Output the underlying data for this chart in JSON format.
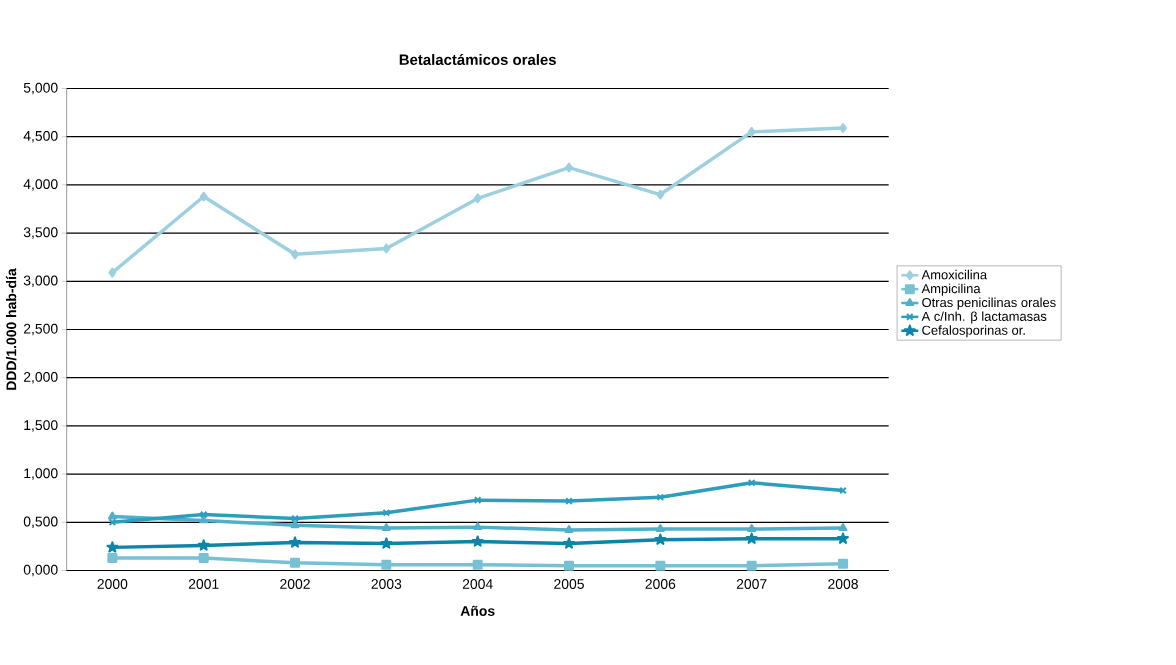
{
  "chart_data": {
    "type": "line",
    "title": "Betalactámicos orales",
    "xlabel": "Años",
    "ylabel": "DDD/1.000 hab-día",
    "categories": [
      "2000",
      "2001",
      "2002",
      "2003",
      "2004",
      "2005",
      "2006",
      "2007",
      "2008"
    ],
    "series": [
      {
        "name": "Amoxicilina",
        "color": "#9dd0df",
        "marker": "diamond",
        "values": [
          3.09,
          3.88,
          3.28,
          3.34,
          3.86,
          4.18,
          3.9,
          4.55,
          4.59
        ]
      },
      {
        "name": "Ampicilina",
        "color": "#78c0d4",
        "marker": "square",
        "values": [
          0.13,
          0.13,
          0.08,
          0.06,
          0.06,
          0.05,
          0.05,
          0.05,
          0.07
        ]
      },
      {
        "name": "Otras penicilinas orales",
        "color": "#4fb0c9",
        "marker": "triangle",
        "values": [
          0.56,
          0.52,
          0.47,
          0.44,
          0.45,
          0.42,
          0.43,
          0.43,
          0.44
        ]
      },
      {
        "name": "A c/Inh. β lactamasas",
        "color": "#2b9ebd",
        "marker": "cross",
        "values": [
          0.5,
          0.58,
          0.54,
          0.6,
          0.73,
          0.72,
          0.76,
          0.91,
          0.83
        ]
      },
      {
        "name": "Cefalosporinas or.",
        "color": "#0c86a8",
        "marker": "star",
        "values": [
          0.24,
          0.26,
          0.29,
          0.28,
          0.3,
          0.28,
          0.32,
          0.33,
          0.33
        ]
      }
    ],
    "ylim": [
      0,
      5
    ],
    "yticks": [
      {
        "value": 0,
        "label": "0,000"
      },
      {
        "value": 0.5,
        "label": "0,500"
      },
      {
        "value": 1,
        "label": "1,000"
      },
      {
        "value": 1.5,
        "label": "1,500"
      },
      {
        "value": 2,
        "label": "2,000"
      },
      {
        "value": 2.5,
        "label": "2,500"
      },
      {
        "value": 3,
        "label": "3,000"
      },
      {
        "value": 3.5,
        "label": "3,500"
      },
      {
        "value": 4,
        "label": "4,000"
      },
      {
        "value": 4.5,
        "label": "4,500"
      },
      {
        "value": 5,
        "label": "5,000"
      }
    ],
    "grid": "y",
    "legend": "right",
    "line_style": "solid"
  }
}
